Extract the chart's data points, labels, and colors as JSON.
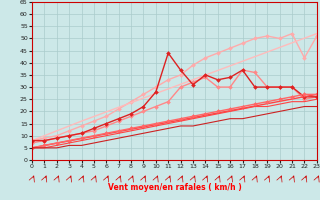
{
  "xlabel": "Vent moyen/en rafales ( km/h )",
  "xlim": [
    0,
    23
  ],
  "ylim": [
    0,
    65
  ],
  "yticks": [
    0,
    5,
    10,
    15,
    20,
    25,
    30,
    35,
    40,
    45,
    50,
    55,
    60,
    65
  ],
  "xticks": [
    0,
    1,
    2,
    3,
    4,
    5,
    6,
    7,
    8,
    9,
    10,
    11,
    12,
    13,
    14,
    15,
    16,
    17,
    18,
    19,
    20,
    21,
    22,
    23
  ],
  "background_color": "#cce8e8",
  "grid_color": "#aacccc",
  "series": [
    {
      "x": [
        0,
        1,
        2,
        3,
        4,
        5,
        6,
        7,
        8,
        9,
        10,
        11,
        12,
        13,
        14,
        15,
        16,
        17,
        18,
        19,
        20,
        21,
        22,
        23
      ],
      "y": [
        8,
        9,
        10,
        12,
        14,
        16,
        18,
        21,
        24,
        27,
        30,
        33,
        35,
        39,
        42,
        44,
        46,
        48,
        50,
        51,
        50,
        52,
        42,
        51
      ],
      "color": "#ffaaaa",
      "lw": 1.0,
      "marker": "D",
      "ms": 2
    },
    {
      "x": [
        0,
        4,
        23
      ],
      "y": [
        8,
        16,
        52
      ],
      "color": "#ffbbbb",
      "lw": 1.0,
      "marker": null
    },
    {
      "x": [
        0,
        1,
        2,
        3,
        4,
        5,
        6,
        7,
        8,
        9,
        10,
        11,
        12,
        13,
        14,
        15,
        16,
        17,
        18,
        19,
        20,
        21,
        22,
        23
      ],
      "y": [
        7,
        8,
        9,
        10,
        11,
        12,
        14,
        16,
        18,
        20,
        22,
        24,
        30,
        32,
        34,
        30,
        30,
        37,
        36,
        30,
        30,
        30,
        25,
        26
      ],
      "color": "#ff8888",
      "lw": 1.0,
      "marker": "D",
      "ms": 2
    },
    {
      "x": [
        0,
        1,
        2,
        3,
        4,
        5,
        6,
        7,
        8,
        9,
        10,
        11,
        12,
        13,
        14,
        15,
        16,
        17,
        18,
        19,
        20,
        21,
        22,
        23
      ],
      "y": [
        8,
        8,
        9,
        10,
        11,
        13,
        15,
        17,
        19,
        22,
        28,
        44,
        37,
        31,
        35,
        33,
        34,
        37,
        30,
        30,
        30,
        30,
        26,
        26
      ],
      "color": "#dd2222",
      "lw": 1.0,
      "marker": "D",
      "ms": 2
    },
    {
      "x": [
        0,
        23
      ],
      "y": [
        5,
        27
      ],
      "color": "#ff4444",
      "lw": 1.0,
      "marker": null
    },
    {
      "x": [
        0,
        1,
        2,
        3,
        4,
        5,
        6,
        7,
        8,
        9,
        10,
        11,
        12,
        13,
        14,
        15,
        16,
        17,
        18,
        19,
        20,
        21,
        22,
        23
      ],
      "y": [
        5,
        6,
        7,
        8,
        9,
        10,
        11,
        12,
        13,
        14,
        15,
        16,
        17,
        18,
        19,
        20,
        21,
        22,
        23,
        24,
        25,
        26,
        27,
        27
      ],
      "color": "#ff6666",
      "lw": 1.0,
      "marker": "D",
      "ms": 2
    },
    {
      "x": [
        0,
        1,
        2,
        3,
        4,
        5,
        6,
        7,
        8,
        9,
        10,
        11,
        12,
        13,
        14,
        15,
        16,
        17,
        18,
        19,
        20,
        21,
        22,
        23
      ],
      "y": [
        5,
        5,
        6,
        7,
        8,
        9,
        10,
        11,
        12,
        13,
        14,
        15,
        16,
        17,
        18,
        19,
        20,
        21,
        22,
        22,
        23,
        24,
        24,
        25
      ],
      "color": "#ff4444",
      "lw": 0.8,
      "marker": null
    },
    {
      "x": [
        0,
        1,
        2,
        3,
        4,
        5,
        6,
        7,
        8,
        9,
        10,
        11,
        12,
        13,
        14,
        15,
        16,
        17,
        18,
        19,
        20,
        21,
        22,
        23
      ],
      "y": [
        5,
        5,
        5,
        6,
        6,
        7,
        8,
        9,
        10,
        11,
        12,
        13,
        14,
        14,
        15,
        16,
        17,
        17,
        18,
        19,
        20,
        21,
        22,
        22
      ],
      "color": "#cc2222",
      "lw": 0.8,
      "marker": null
    }
  ]
}
